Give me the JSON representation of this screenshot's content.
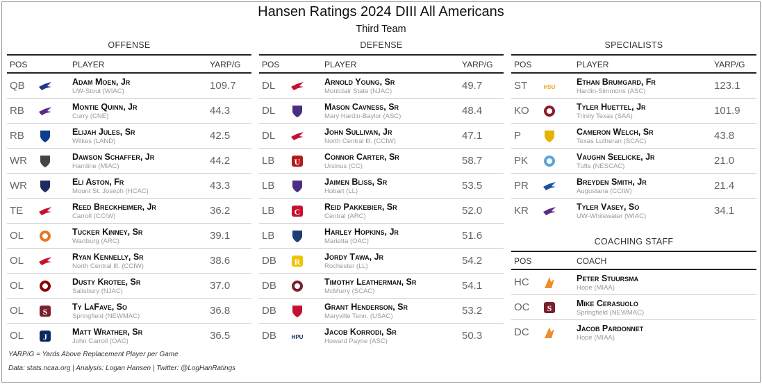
{
  "title": "Hansen Ratings 2024 DIII All Americans",
  "subtitle": "Third Team",
  "columns": {
    "pos": "POS",
    "player": "PLAYER",
    "yarp": "YARP/G",
    "coach": "COACH"
  },
  "offense": {
    "title": "OFFENSE",
    "rows": [
      {
        "pos": "QB",
        "name": "Adam Moen, Jr",
        "team": "UW-Stout (WIAC)",
        "yarp": "109.7",
        "logo_icon": "uw-stout-logo",
        "logo_color": "#1e3a8a"
      },
      {
        "pos": "RB",
        "name": "Montie Quinn, Jr",
        "team": "Curry (CNE)",
        "yarp": "44.3",
        "logo_icon": "curry-logo",
        "logo_color": "#5b2a86"
      },
      {
        "pos": "RB",
        "name": "Elijah Jules, Sr",
        "team": "Wilkes (LAND)",
        "yarp": "42.5",
        "logo_icon": "wilkes-logo",
        "logo_color": "#0b3d91"
      },
      {
        "pos": "WR",
        "name": "Dawson Schaffer, Jr",
        "team": "Hamline (MIAC)",
        "yarp": "44.2",
        "logo_icon": "hamline-logo",
        "logo_color": "#444444"
      },
      {
        "pos": "WR",
        "name": "Eli Aston, Fr",
        "team": "Mount St. Joseph (HCAC)",
        "yarp": "43.3",
        "logo_icon": "mount-st-joseph-logo",
        "logo_color": "#1f2a60"
      },
      {
        "pos": "TE",
        "name": "Reed Breckheimer, Jr",
        "team": "Carroll (CCIW)",
        "yarp": "36.2",
        "logo_icon": "carroll-logo",
        "logo_color": "#c8102e"
      },
      {
        "pos": "OL",
        "name": "Tucker Kinney, Sr",
        "team": "Wartburg (ARC)",
        "yarp": "39.1",
        "logo_icon": "wartburg-logo",
        "logo_color": "#e87722"
      },
      {
        "pos": "OL",
        "name": "Ryan Kennelly, Sr",
        "team": "North Central Ill. (CCIW)",
        "yarp": "38.6",
        "logo_icon": "north-central-logo",
        "logo_color": "#c8102e"
      },
      {
        "pos": "OL",
        "name": "Dusty Krotee, Sr",
        "team": "Salisbury (NJAC)",
        "yarp": "37.0",
        "logo_icon": "salisbury-logo",
        "logo_color": "#8b0000"
      },
      {
        "pos": "OL",
        "name": "Ty LaFave, So",
        "team": "Springfield (NEWMAC)",
        "yarp": "36.8",
        "logo_icon": "springfield-logo",
        "logo_color": "#7a1f2b"
      },
      {
        "pos": "OL",
        "name": "Matt Wrather, Sr",
        "team": "John Carroll (OAC)",
        "yarp": "36.5",
        "logo_icon": "john-carroll-logo",
        "logo_color": "#0b2a5b"
      }
    ]
  },
  "defense": {
    "title": "DEFENSE",
    "rows": [
      {
        "pos": "DL",
        "name": "Arnold Young, Sr",
        "team": "Montclair State (NJAC)",
        "yarp": "49.7",
        "logo_icon": "montclair-state-logo",
        "logo_color": "#c8102e"
      },
      {
        "pos": "DL",
        "name": "Mason Cavness, Sr",
        "team": "Mary Hardin-Baylor (ASC)",
        "yarp": "48.4",
        "logo_icon": "umhb-logo",
        "logo_color": "#4b2e83"
      },
      {
        "pos": "DL",
        "name": "John Sullivan, Jr",
        "team": "North Central Ill. (CCIW)",
        "yarp": "47.1",
        "logo_icon": "north-central-logo",
        "logo_color": "#c8102e"
      },
      {
        "pos": "LB",
        "name": "Connor Carter, Sr",
        "team": "Ursinus (CC)",
        "yarp": "58.7",
        "logo_icon": "ursinus-logo",
        "logo_color": "#b31b1b"
      },
      {
        "pos": "LB",
        "name": "Jaimen Bliss, Sr",
        "team": "Hobart (LL)",
        "yarp": "53.5",
        "logo_icon": "hobart-logo",
        "logo_color": "#4b2e83"
      },
      {
        "pos": "LB",
        "name": "Reid Pakkebier, Sr",
        "team": "Central (ARC)",
        "yarp": "52.0",
        "logo_icon": "central-logo",
        "logo_color": "#c8102e"
      },
      {
        "pos": "LB",
        "name": "Harley Hopkins, Jr",
        "team": "Marietta (OAC)",
        "yarp": "51.6",
        "logo_icon": "marietta-logo",
        "logo_color": "#1c3f74"
      },
      {
        "pos": "DB",
        "name": "Jordy Tawa, Jr",
        "team": "Rochester (LL)",
        "yarp": "54.2",
        "logo_icon": "rochester-logo",
        "logo_color": "#f2c200"
      },
      {
        "pos": "DB",
        "name": "Timothy Leatherman, Sr",
        "team": "McMurry (SCAC)",
        "yarp": "54.1",
        "logo_icon": "mcmurry-logo",
        "logo_color": "#7a1f2b"
      },
      {
        "pos": "DB",
        "name": "Grant Henderson, Sr",
        "team": "Maryville Tenn. (USAC)",
        "yarp": "53.2",
        "logo_icon": "maryville-logo",
        "logo_color": "#c8102e"
      },
      {
        "pos": "DB",
        "name": "Jacob Korrodi, Sr",
        "team": "Howard Payne (ASC)",
        "yarp": "50.3",
        "logo_icon": "hpu-logo",
        "logo_color": "#0b2a5b",
        "logo_text": "HPU"
      }
    ]
  },
  "specialists": {
    "title": "SPECIALISTS",
    "rows": [
      {
        "pos": "ST",
        "name": "Ethan Brumgard, Fr",
        "team": "Hardin-Simmons (ASC)",
        "yarp": "123.1",
        "logo_icon": "hsu-logo",
        "logo_color": "#e5a823",
        "logo_text": "HSU"
      },
      {
        "pos": "KO",
        "name": "Tyler Huettel, Jr",
        "team": "Trinity Texas (SAA)",
        "yarp": "101.9",
        "logo_icon": "trinity-texas-logo",
        "logo_color": "#8b1d2c"
      },
      {
        "pos": "P",
        "name": "Cameron Welch, Sr",
        "team": "Texas Lutheran (SCAC)",
        "yarp": "43.8",
        "logo_icon": "texas-lutheran-logo",
        "logo_color": "#e5b300"
      },
      {
        "pos": "PK",
        "name": "Vaughn Seelicke, Jr",
        "team": "Tufts (NESCAC)",
        "yarp": "21.0",
        "logo_icon": "tufts-logo",
        "logo_color": "#5ea3d8"
      },
      {
        "pos": "PR",
        "name": "Breyden Smith, Jr",
        "team": "Augustana (CCIW)",
        "yarp": "21.4",
        "logo_icon": "augustana-logo",
        "logo_color": "#1f4e9c"
      },
      {
        "pos": "KR",
        "name": "Tyler Vasey, So",
        "team": "UW-Whitewater (WIAC)",
        "yarp": "34.1",
        "logo_icon": "uw-whitewater-logo",
        "logo_color": "#5b2a86"
      }
    ]
  },
  "coaching": {
    "title": "COACHING STAFF",
    "rows": [
      {
        "pos": "HC",
        "name": "Peter Stuursma",
        "team": "Hope (MIAA)",
        "logo_icon": "hope-logo",
        "logo_color": "#f28c28"
      },
      {
        "pos": "OC",
        "name": "Mike Cerasuolo",
        "team": "Springfield (NEWMAC)",
        "logo_icon": "springfield-logo",
        "logo_color": "#7a1f2b"
      },
      {
        "pos": "DC",
        "name": "Jacob Pardonnet",
        "team": "Hope (MIAA)",
        "logo_icon": "hope-logo",
        "logo_color": "#f28c28"
      }
    ]
  },
  "footnote": "YARP/G = Yards Above Replacement Player per Game",
  "credits": "Data: stats.ncaa.org | Analysis: Logan Hansen | Twitter: @LogHanRatings"
}
